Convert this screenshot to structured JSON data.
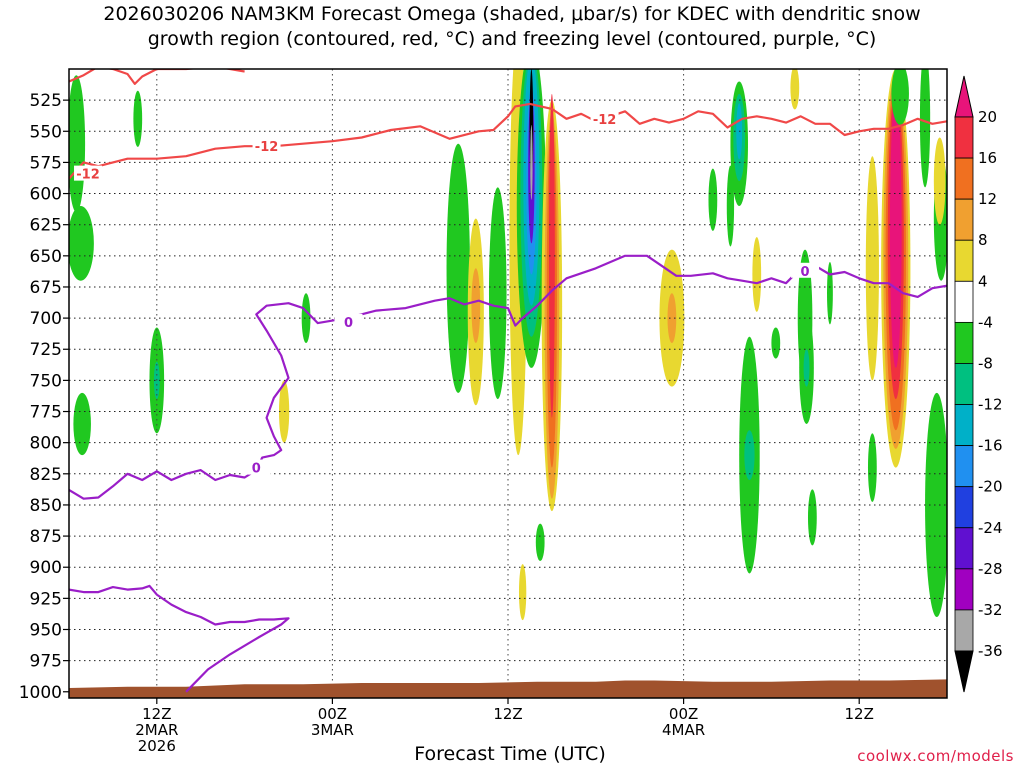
{
  "title_lines": [
    "2026030206 NAM3KM Forecast Omega (shaded, μbar/s) for KDEC with dendritic snow",
    "growth region (contoured, red, °C) and freezing level (contoured, purple, °C)"
  ],
  "credit": "coolwx.com/models",
  "chart_data": {
    "type": "heatmap",
    "title": "2026030206 NAM3KM Forecast Omega (shaded, μbar/s) for KDEC with dendritic snow growth region (contoured, red, °C) and freezing level (contoured, purple, °C)",
    "xlabel": "Forecast Time (UTC)",
    "ylabel": "",
    "x_range_hours": [
      6,
      66
    ],
    "y_levels_hpa": [
      525,
      550,
      575,
      600,
      625,
      650,
      675,
      700,
      725,
      750,
      775,
      800,
      825,
      850,
      875,
      900,
      925,
      950,
      975,
      1000
    ],
    "y_range_hpa": [
      500,
      1005
    ],
    "x_ticks": [
      {
        "hour": 12,
        "lines": [
          "12Z",
          "2MAR",
          "2026"
        ]
      },
      {
        "hour": 24,
        "lines": [
          "00Z",
          "3MAR"
        ]
      },
      {
        "hour": 36,
        "lines": [
          "12Z"
        ]
      },
      {
        "hour": 48,
        "lines": [
          "00Z",
          "4MAR"
        ]
      },
      {
        "hour": 60,
        "lines": [
          "12Z"
        ]
      }
    ],
    "colorbar": {
      "labels": [
        "20",
        "16",
        "12",
        "8",
        "4",
        "-4",
        "-8",
        "-12",
        "-16",
        "-20",
        "-24",
        "-28",
        "-32",
        "-36"
      ],
      "bands": [
        {
          "lo": 16,
          "hi": 20,
          "color": "#f03040"
        },
        {
          "lo": 12,
          "hi": 16,
          "color": "#f07020"
        },
        {
          "lo": 8,
          "hi": 12,
          "color": "#f0a030"
        },
        {
          "lo": 4,
          "hi": 8,
          "color": "#e8d830"
        },
        {
          "lo": -4,
          "hi": 4,
          "color": "#ffffff"
        },
        {
          "lo": -8,
          "hi": -4,
          "color": "#20c820"
        },
        {
          "lo": -12,
          "hi": -8,
          "color": "#00c080"
        },
        {
          "lo": -16,
          "hi": -12,
          "color": "#00b0c8"
        },
        {
          "lo": -20,
          "hi": -16,
          "color": "#2090f0"
        },
        {
          "lo": -24,
          "hi": -20,
          "color": "#2040e0"
        },
        {
          "lo": -28,
          "hi": -24,
          "color": "#6010d0"
        },
        {
          "lo": -32,
          "hi": -28,
          "color": "#a000c0"
        },
        {
          "lo": -36,
          "hi": -32,
          "color": "#a8a8a8"
        }
      ],
      "top_triangle_color": "#e8147a",
      "bottom_triangle_color": "#000000"
    },
    "omega_cells": [
      {
        "x": 6.5,
        "p": 560,
        "w": 0.6,
        "h": 110,
        "color": "#20c820"
      },
      {
        "x": 6.8,
        "p": 640,
        "w": 0.9,
        "h": 60,
        "color": "#20c820"
      },
      {
        "x": 10.7,
        "p": 540,
        "w": 0.3,
        "h": 45,
        "color": "#20c820"
      },
      {
        "x": 6.9,
        "p": 785,
        "w": 0.6,
        "h": 50,
        "color": "#20c820"
      },
      {
        "x": 12.0,
        "p": 750,
        "w": 0.5,
        "h": 85,
        "color": "#20c820"
      },
      {
        "x": 12.0,
        "p": 750,
        "w": 0.2,
        "h": 30,
        "color": "#00c080"
      },
      {
        "x": 22.2,
        "p": 700,
        "w": 0.3,
        "h": 40,
        "color": "#20c820"
      },
      {
        "x": 20.7,
        "p": 775,
        "w": 0.35,
        "h": 50,
        "color": "#e8d830"
      },
      {
        "x": 32.6,
        "p": 660,
        "w": 0.8,
        "h": 200,
        "color": "#20c820"
      },
      {
        "x": 33.8,
        "p": 695,
        "w": 0.55,
        "h": 150,
        "color": "#e8d830"
      },
      {
        "x": 33.8,
        "p": 690,
        "w": 0.3,
        "h": 60,
        "color": "#f0a030"
      },
      {
        "x": 35.3,
        "p": 680,
        "w": 0.6,
        "h": 170,
        "color": "#20c820"
      },
      {
        "x": 36.7,
        "p": 640,
        "w": 0.6,
        "h": 340,
        "color": "#e8d830"
      },
      {
        "x": 37.6,
        "p": 610,
        "w": 1.0,
        "h": 260,
        "color": "#20c820"
      },
      {
        "x": 37.6,
        "p": 600,
        "w": 0.75,
        "h": 230,
        "color": "#00c080"
      },
      {
        "x": 37.6,
        "p": 590,
        "w": 0.55,
        "h": 200,
        "color": "#00b0c8"
      },
      {
        "x": 37.6,
        "p": 590,
        "w": 0.35,
        "h": 150,
        "color": "#2090f0"
      },
      {
        "x": 37.6,
        "p": 580,
        "w": 0.22,
        "h": 120,
        "color": "#6010d0"
      },
      {
        "x": 37.6,
        "p": 545,
        "w": 0.12,
        "h": 90,
        "color": "#000000"
      },
      {
        "x": 37.6,
        "p": 575,
        "w": 0.08,
        "h": 60,
        "color": "#a8a8a8"
      },
      {
        "x": 39.0,
        "p": 690,
        "w": 0.7,
        "h": 330,
        "color": "#e8d830"
      },
      {
        "x": 39.0,
        "p": 690,
        "w": 0.5,
        "h": 310,
        "color": "#f0a030"
      },
      {
        "x": 39.0,
        "p": 680,
        "w": 0.35,
        "h": 280,
        "color": "#f07020"
      },
      {
        "x": 39.0,
        "p": 650,
        "w": 0.2,
        "h": 260,
        "color": "#f03040"
      },
      {
        "x": 37.0,
        "p": 920,
        "w": 0.25,
        "h": 45,
        "color": "#e8d830"
      },
      {
        "x": 38.2,
        "p": 880,
        "w": 0.3,
        "h": 30,
        "color": "#20c820"
      },
      {
        "x": 47.2,
        "p": 700,
        "w": 0.85,
        "h": 110,
        "color": "#e8d830"
      },
      {
        "x": 47.2,
        "p": 700,
        "w": 0.3,
        "h": 40,
        "color": "#f0a030"
      },
      {
        "x": 50.0,
        "p": 605,
        "w": 0.3,
        "h": 50,
        "color": "#20c820"
      },
      {
        "x": 53.0,
        "p": 665,
        "w": 0.3,
        "h": 60,
        "color": "#e8d830"
      },
      {
        "x": 51.8,
        "p": 560,
        "w": 0.6,
        "h": 100,
        "color": "#20c820"
      },
      {
        "x": 51.8,
        "p": 555,
        "w": 0.4,
        "h": 70,
        "color": "#00c080"
      },
      {
        "x": 51.8,
        "p": 550,
        "w": 0.2,
        "h": 45,
        "color": "#00b0c8"
      },
      {
        "x": 55.6,
        "p": 515,
        "w": 0.3,
        "h": 35,
        "color": "#e8d830"
      },
      {
        "x": 51.2,
        "p": 610,
        "w": 0.25,
        "h": 65,
        "color": "#20c820"
      },
      {
        "x": 56.3,
        "p": 700,
        "w": 0.5,
        "h": 110,
        "color": "#20c820"
      },
      {
        "x": 58.0,
        "p": 680,
        "w": 0.2,
        "h": 50,
        "color": "#20c820"
      },
      {
        "x": 54.3,
        "p": 720,
        "w": 0.3,
        "h": 25,
        "color": "#20c820"
      },
      {
        "x": 56.4,
        "p": 740,
        "w": 0.5,
        "h": 90,
        "color": "#20c820"
      },
      {
        "x": 56.4,
        "p": 740,
        "w": 0.2,
        "h": 30,
        "color": "#00c080"
      },
      {
        "x": 52.5,
        "p": 810,
        "w": 0.7,
        "h": 190,
        "color": "#20c820"
      },
      {
        "x": 52.5,
        "p": 810,
        "w": 0.35,
        "h": 40,
        "color": "#00c080"
      },
      {
        "x": 56.8,
        "p": 860,
        "w": 0.3,
        "h": 45,
        "color": "#20c820"
      },
      {
        "x": 60.9,
        "p": 660,
        "w": 0.45,
        "h": 180,
        "color": "#e8d830"
      },
      {
        "x": 62.5,
        "p": 660,
        "w": 1.0,
        "h": 320,
        "color": "#e8d830"
      },
      {
        "x": 62.5,
        "p": 655,
        "w": 0.85,
        "h": 300,
        "color": "#f0a030"
      },
      {
        "x": 62.5,
        "p": 650,
        "w": 0.7,
        "h": 280,
        "color": "#f07020"
      },
      {
        "x": 62.5,
        "p": 640,
        "w": 0.55,
        "h": 250,
        "color": "#f03040"
      },
      {
        "x": 62.5,
        "p": 630,
        "w": 0.4,
        "h": 220,
        "color": "#e8147a"
      },
      {
        "x": 62.8,
        "p": 520,
        "w": 0.6,
        "h": 50,
        "color": "#20c820"
      },
      {
        "x": 64.5,
        "p": 540,
        "w": 0.35,
        "h": 110,
        "color": "#20c820"
      },
      {
        "x": 65.6,
        "p": 620,
        "w": 0.5,
        "h": 100,
        "color": "#20c820"
      },
      {
        "x": 65.5,
        "p": 590,
        "w": 0.4,
        "h": 70,
        "color": "#e8d830"
      },
      {
        "x": 65.3,
        "p": 850,
        "w": 0.8,
        "h": 180,
        "color": "#20c820"
      },
      {
        "x": 60.9,
        "p": 820,
        "w": 0.3,
        "h": 55,
        "color": "#20c820"
      }
    ],
    "dgz_contour_label": "-12",
    "dgz_contour": [
      [
        6,
        510
      ],
      [
        7,
        505
      ],
      [
        8,
        498
      ],
      [
        9,
        500
      ],
      [
        10,
        504
      ],
      [
        10.5,
        512
      ],
      [
        11,
        506
      ],
      [
        12,
        500
      ],
      [
        14,
        500
      ],
      [
        16,
        498
      ],
      [
        18,
        502
      ]
    ],
    "dgz_contour2": [
      [
        6,
        588
      ],
      [
        7,
        575
      ],
      [
        8,
        578
      ],
      [
        10,
        572
      ],
      [
        12,
        572
      ],
      [
        14,
        570
      ],
      [
        16,
        564
      ],
      [
        18,
        562
      ],
      [
        20,
        562
      ],
      [
        22,
        560
      ],
      [
        24,
        558
      ],
      [
        26,
        555
      ],
      [
        28,
        549
      ],
      [
        30,
        546
      ],
      [
        32,
        556
      ],
      [
        34,
        550
      ],
      [
        35,
        549
      ],
      [
        36,
        538
      ],
      [
        36.5,
        530
      ],
      [
        37.5,
        528
      ],
      [
        39,
        532
      ],
      [
        40,
        540
      ],
      [
        41,
        536
      ],
      [
        42,
        542
      ],
      [
        43,
        538
      ],
      [
        44,
        534
      ],
      [
        45,
        544
      ],
      [
        46,
        540
      ],
      [
        47,
        543
      ],
      [
        48,
        540
      ],
      [
        49,
        534
      ],
      [
        50,
        536
      ],
      [
        51,
        547
      ],
      [
        52,
        540
      ],
      [
        53,
        538
      ],
      [
        54,
        540
      ],
      [
        55,
        543
      ],
      [
        56,
        538
      ],
      [
        57,
        544
      ],
      [
        58,
        544
      ],
      [
        59,
        553
      ],
      [
        60,
        550
      ],
      [
        61,
        548
      ],
      [
        62,
        548
      ],
      [
        63,
        545
      ],
      [
        64,
        540
      ],
      [
        65,
        544
      ],
      [
        66,
        542
      ]
    ],
    "freezing_contour_label": "0",
    "freezing_contour": [
      [
        6,
        838
      ],
      [
        7,
        845
      ],
      [
        8,
        844
      ],
      [
        9,
        835
      ],
      [
        10,
        825
      ],
      [
        11,
        830
      ],
      [
        12,
        823
      ],
      [
        13,
        830
      ],
      [
        14,
        825
      ],
      [
        15,
        822
      ],
      [
        16,
        830
      ],
      [
        17,
        826
      ],
      [
        18,
        828
      ],
      [
        18.8,
        822
      ],
      [
        19.2,
        812
      ],
      [
        20,
        810
      ],
      [
        20.5,
        806
      ],
      [
        20,
        795
      ],
      [
        19.5,
        780
      ],
      [
        20,
        764
      ],
      [
        21,
        748
      ],
      [
        20.5,
        730
      ],
      [
        19.5,
        710
      ],
      [
        18.8,
        697
      ],
      [
        19.5,
        690
      ],
      [
        21,
        688
      ],
      [
        22,
        692
      ],
      [
        23,
        704
      ],
      [
        25,
        700
      ],
      [
        27,
        694
      ],
      [
        29,
        692
      ],
      [
        31,
        686
      ],
      [
        32,
        684
      ],
      [
        33,
        689
      ],
      [
        34,
        686
      ],
      [
        35,
        690
      ],
      [
        36,
        692
      ],
      [
        36.5,
        706
      ],
      [
        37,
        700
      ],
      [
        38,
        690
      ],
      [
        39,
        678
      ],
      [
        40,
        668
      ],
      [
        42,
        660
      ],
      [
        44,
        650
      ],
      [
        45.5,
        650
      ],
      [
        46.5,
        658
      ],
      [
        47.5,
        666
      ],
      [
        48.5,
        666
      ],
      [
        50,
        664
      ],
      [
        51,
        668
      ],
      [
        52,
        670
      ],
      [
        53,
        672
      ],
      [
        54,
        668
      ],
      [
        55,
        672
      ],
      [
        56,
        660
      ],
      [
        57,
        658
      ],
      [
        58,
        665
      ],
      [
        59,
        663
      ],
      [
        60,
        668
      ],
      [
        61,
        672
      ],
      [
        62,
        672
      ],
      [
        63,
        680
      ],
      [
        64,
        683
      ],
      [
        65,
        676
      ],
      [
        66,
        674
      ]
    ],
    "freezing_contour2": [
      [
        6,
        918
      ],
      [
        7,
        920
      ],
      [
        8,
        920
      ],
      [
        9,
        916
      ],
      [
        10,
        918
      ],
      [
        11,
        917
      ],
      [
        11.5,
        915
      ],
      [
        12,
        922
      ],
      [
        13,
        930
      ],
      [
        14,
        936
      ],
      [
        15,
        940
      ],
      [
        16,
        946
      ],
      [
        17,
        944
      ],
      [
        18,
        944
      ],
      [
        19,
        942
      ],
      [
        20,
        942
      ],
      [
        21,
        941
      ],
      [
        20.5,
        946
      ],
      [
        19,
        956
      ],
      [
        17,
        970
      ],
      [
        15.5,
        982
      ],
      [
        14.5,
        994
      ],
      [
        14,
        1000
      ]
    ],
    "terrain": [
      [
        6,
        997
      ],
      [
        10,
        996
      ],
      [
        14,
        996
      ],
      [
        18,
        994
      ],
      [
        22,
        994
      ],
      [
        26,
        993
      ],
      [
        30,
        993
      ],
      [
        34,
        993
      ],
      [
        38,
        992
      ],
      [
        42,
        992
      ],
      [
        44,
        991
      ],
      [
        46,
        991
      ],
      [
        50,
        992
      ],
      [
        54,
        992
      ],
      [
        58,
        991
      ],
      [
        62,
        991
      ],
      [
        66,
        990
      ]
    ]
  }
}
